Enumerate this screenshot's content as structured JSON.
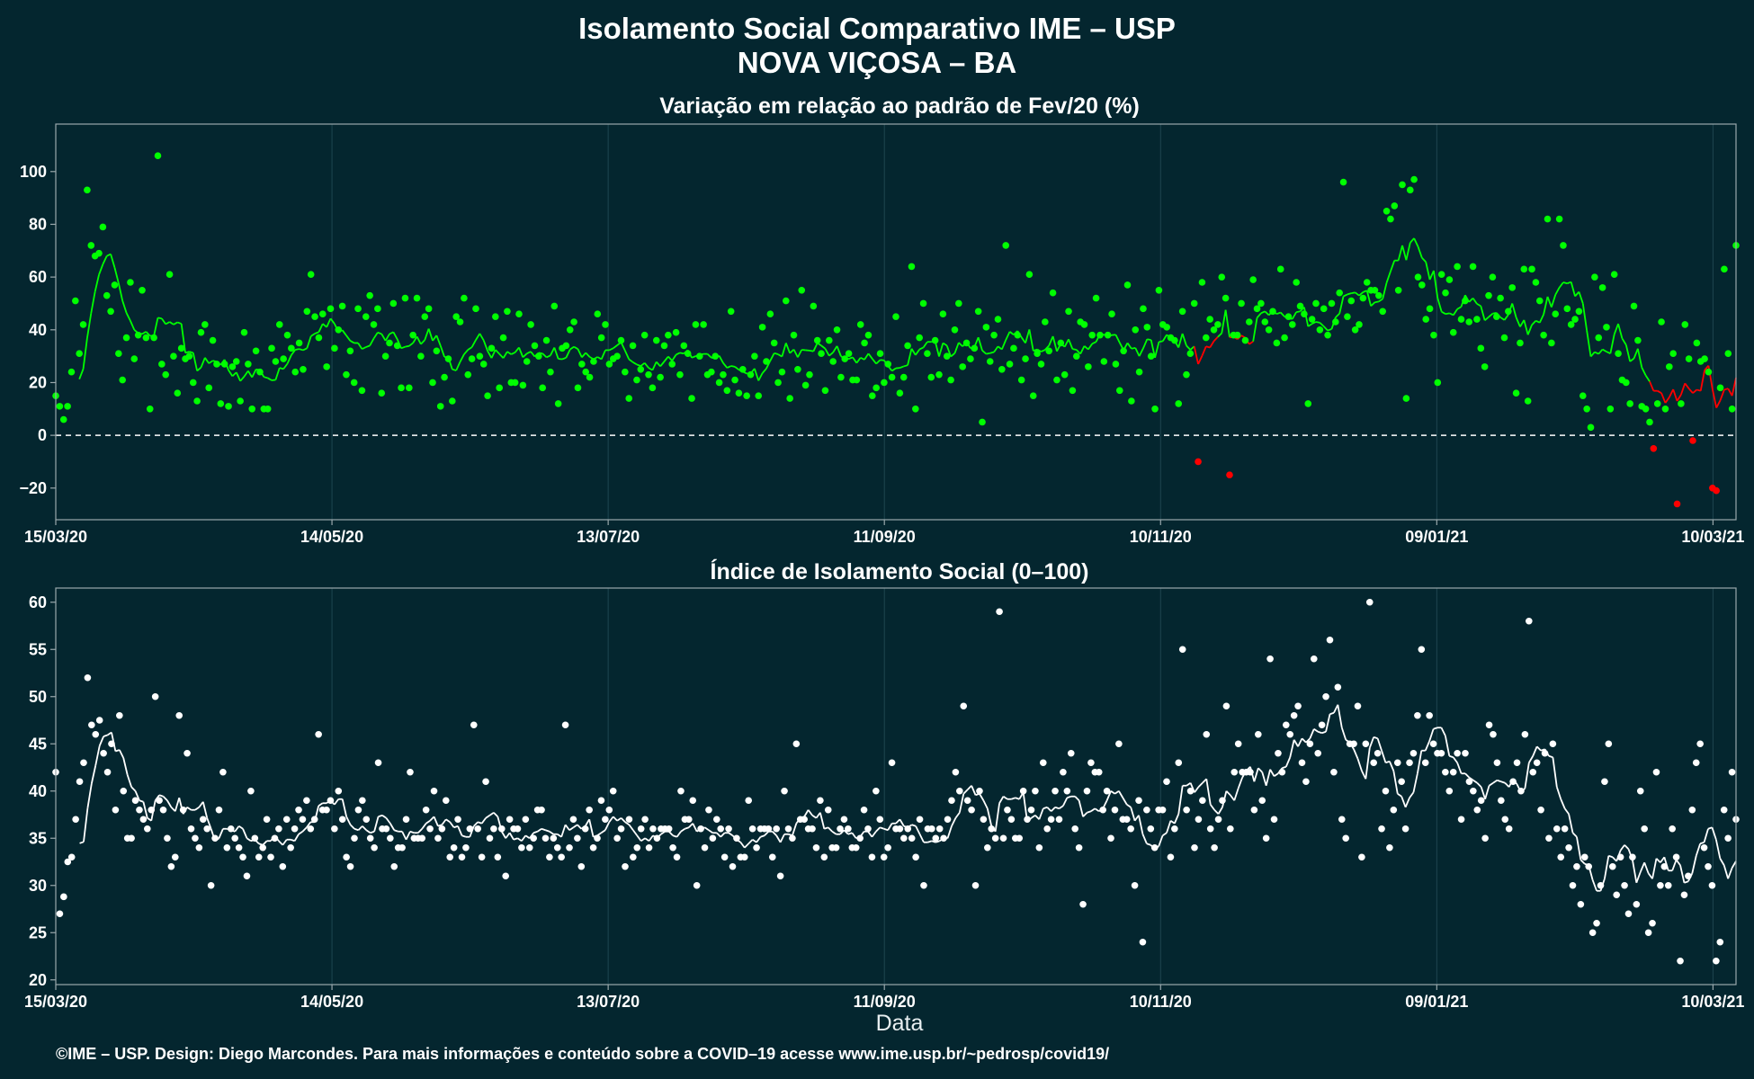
{
  "title": "Isolamento Social Comparativo IME – USP",
  "subtitle": "NOVA VIÇOSA – BA",
  "footer": "©IME – USP. Design: Diego Marcondes. Para mais informações e conteúdo sobre a COVID–19 acesse www.ime.usp.br/~pedrosp/covid19/",
  "colors": {
    "background": "#04262f",
    "panel_border": "#9aa8ac",
    "grid": "#1e4650",
    "positive": "#00ff00",
    "negative": "#ff0000",
    "index_points": "#ffffff"
  },
  "chart_data": [
    {
      "type": "scatter",
      "title": "Variação em relação ao padrão de Fev/20 (%)",
      "xlabel": "",
      "ylabel": "",
      "ylim": [
        -32,
        118
      ],
      "yticks": [
        -20,
        0,
        20,
        40,
        60,
        80,
        100
      ],
      "ytick_labels": [
        "−20",
        "0",
        "20",
        "40",
        "60",
        "80",
        "100"
      ],
      "x_tick_labels": [
        "15/03/20",
        "14/05/20",
        "13/07/20",
        "11/09/20",
        "10/11/20",
        "09/01/21",
        "10/03/21"
      ],
      "x_tick_days": [
        0,
        60,
        120,
        180,
        240,
        300,
        360
      ],
      "x_range_days": [
        0,
        365
      ],
      "reference_line": 0,
      "grid": true,
      "note": "points green when ≥ 0, red when < 0; line = 7-day moving average",
      "daily_values": [
        15,
        11,
        6,
        11,
        24,
        51,
        31,
        42,
        93,
        72,
        68,
        69,
        79,
        53,
        47,
        57,
        31,
        21,
        37,
        58,
        29,
        38,
        55,
        37,
        10,
        37,
        106,
        27,
        23,
        61,
        30,
        16,
        33,
        29,
        30,
        20,
        13,
        39,
        42,
        18,
        36,
        27,
        12,
        27,
        11,
        26,
        28,
        13,
        39,
        27,
        10,
        32,
        24,
        10,
        10,
        33,
        28,
        42,
        29,
        38,
        33,
        24,
        35,
        25,
        47,
        61,
        45,
        37,
        46,
        26,
        48,
        33,
        40,
        49,
        23,
        32,
        20,
        48,
        17,
        45,
        53,
        42,
        48,
        16,
        30,
        35,
        50,
        34,
        18,
        52,
        18,
        38,
        52,
        30,
        45,
        48,
        20,
        32,
        11,
        22,
        29,
        13,
        45,
        43,
        52,
        23,
        29,
        48,
        30,
        27,
        15,
        33,
        45,
        18,
        37,
        47,
        20,
        20,
        46,
        19,
        28,
        42,
        34,
        30,
        18,
        36,
        24,
        49,
        12,
        33,
        34,
        40,
        43,
        18,
        27,
        24,
        22,
        28,
        46,
        37,
        42,
        27,
        29,
        30,
        36,
        24,
        14,
        34,
        21,
        25,
        38,
        23,
        18,
        36,
        22,
        34,
        38,
        27,
        39,
        23,
        34,
        31,
        14,
        42,
        30,
        42,
        23,
        24,
        30,
        20,
        23,
        17,
        47,
        21,
        16,
        25,
        15,
        23,
        30,
        15,
        41,
        28,
        46,
        35,
        20,
        24,
        51,
        14,
        38,
        25,
        55,
        19,
        23,
        49,
        36,
        31,
        17,
        36,
        28,
        40,
        22,
        29,
        31,
        21,
        21,
        42,
        35,
        38,
        15,
        18,
        31,
        20,
        27,
        22,
        45,
        16,
        22,
        34,
        64,
        10,
        37,
        50,
        31,
        22,
        36,
        23,
        46,
        30,
        21,
        40,
        50,
        26,
        35,
        29,
        33,
        47,
        5,
        41,
        28,
        38,
        44,
        25,
        72,
        27,
        33,
        38,
        21,
        29,
        61,
        15,
        31,
        27,
        43,
        32,
        54,
        21,
        35,
        23,
        47,
        17,
        30,
        43,
        42,
        26,
        38,
        52,
        38,
        28,
        38,
        46,
        27,
        17,
        32,
        57,
        13,
        40,
        24,
        48,
        41,
        30,
        10,
        55,
        42,
        41,
        37,
        36,
        12,
        47,
        23,
        31,
        50,
        -10,
        58,
        37,
        44,
        40,
        42,
        60,
        52,
        -15,
        38,
        38,
        50,
        36,
        43,
        59,
        48,
        50,
        43,
        40,
        47,
        35,
        63,
        37,
        45,
        42,
        58,
        49,
        46,
        12,
        44,
        50,
        40,
        48,
        38,
        50,
        43,
        54,
        96,
        45,
        51,
        40,
        42,
        52,
        58,
        55,
        55,
        53,
        47,
        85,
        82,
        87,
        55,
        95,
        14,
        93,
        97,
        60,
        57,
        44,
        48,
        38,
        20,
        61,
        54,
        59,
        39,
        64,
        44,
        51,
        43,
        64,
        44,
        33,
        26,
        53,
        60,
        45,
        52,
        37,
        47,
        56,
        16,
        35,
        63,
        13,
        63,
        58,
        51,
        38,
        82,
        35,
        46,
        82,
        72,
        48,
        42,
        44,
        47,
        15,
        10,
        3,
        60,
        37,
        56,
        41,
        10,
        61,
        31,
        21,
        20,
        12,
        49,
        36,
        11,
        10,
        5,
        -5,
        12,
        43,
        10,
        26,
        31,
        -26,
        12,
        42,
        29,
        -2,
        35,
        28,
        29,
        24,
        -20,
        -21,
        18,
        63,
        31,
        10,
        72
      ]
    },
    {
      "type": "scatter",
      "title": "Índice de Isolamento Social (0–100)",
      "xlabel": "Data",
      "ylabel": "",
      "ylim": [
        19.5,
        61.5
      ],
      "yticks": [
        20,
        25,
        30,
        35,
        40,
        45,
        50,
        55,
        60
      ],
      "x_tick_labels": [
        "15/03/20",
        "14/05/20",
        "13/07/20",
        "11/09/20",
        "10/11/20",
        "09/01/21",
        "10/03/21"
      ],
      "x_tick_days": [
        0,
        60,
        120,
        180,
        240,
        300,
        360
      ],
      "x_range_days": [
        0,
        365
      ],
      "grid": true,
      "note": "line = 7-day moving average",
      "daily_values": [
        42,
        27,
        28.8,
        32.5,
        33,
        37,
        41,
        43,
        52,
        47,
        46,
        47.5,
        44,
        42,
        45,
        38,
        48,
        40,
        35,
        35,
        39,
        38,
        37,
        36,
        38,
        50,
        39,
        38,
        35,
        32,
        33,
        48,
        38,
        44,
        36,
        35,
        34,
        37,
        36,
        30,
        35,
        38,
        42,
        34,
        36,
        35,
        34,
        33,
        31,
        40,
        35,
        33,
        34,
        37,
        33,
        35,
        36,
        32,
        37,
        34,
        36,
        38,
        37,
        39,
        36,
        37,
        46,
        38,
        38,
        39,
        36,
        40,
        37,
        33,
        32,
        35,
        38,
        39,
        37,
        35,
        34,
        43,
        36,
        36,
        35,
        32,
        34,
        34,
        37,
        42,
        35,
        35,
        35,
        38,
        36,
        40,
        35,
        36,
        39,
        33,
        34,
        37,
        33,
        34,
        36,
        47,
        36,
        33,
        41,
        35,
        36,
        33,
        36,
        31,
        37,
        36,
        36,
        34,
        37,
        34,
        35,
        38,
        38,
        35,
        33,
        35,
        34,
        33,
        47,
        34,
        37,
        35,
        32,
        36,
        38,
        34,
        35,
        39,
        37,
        38,
        40,
        35,
        36,
        32,
        37,
        33,
        34,
        36,
        37,
        34,
        36,
        35,
        36,
        36,
        36,
        34,
        33,
        40,
        37,
        37,
        39,
        30,
        36,
        34,
        38,
        35,
        37,
        36,
        33,
        36,
        32,
        35,
        33,
        33,
        39,
        36,
        34,
        36,
        36,
        36,
        33,
        36,
        31,
        40,
        36,
        35,
        45,
        37,
        37,
        36,
        36,
        34,
        39,
        33,
        38,
        34,
        34,
        36,
        37,
        36,
        34,
        34,
        35,
        38,
        36,
        33,
        40,
        37,
        33,
        34,
        43,
        36,
        36,
        35,
        36,
        35,
        33,
        37,
        30,
        36,
        36,
        35,
        36,
        35,
        37,
        39,
        42,
        40,
        49,
        39,
        38,
        30,
        40,
        37,
        34,
        36,
        35,
        59,
        35,
        38,
        37,
        35,
        35,
        40,
        37,
        38,
        40,
        34,
        43,
        36,
        37,
        40,
        37,
        42,
        40,
        44,
        36,
        34,
        28,
        40,
        43,
        42,
        42,
        38,
        40,
        35,
        38,
        45,
        37,
        37,
        36,
        30,
        39,
        24,
        38,
        36,
        34,
        38,
        38,
        41,
        33,
        36,
        43,
        55,
        38,
        40,
        34,
        37,
        39,
        46,
        36,
        34,
        37,
        39,
        49,
        36,
        42,
        45,
        42,
        42,
        42,
        38,
        46,
        39,
        35,
        54,
        37,
        44,
        42,
        47,
        46,
        48,
        49,
        43,
        41,
        45,
        54,
        44,
        47,
        50,
        56,
        42,
        51,
        37,
        35,
        45,
        45,
        49,
        33,
        45,
        60,
        43,
        44,
        36,
        40,
        34,
        38,
        43,
        41,
        36,
        43,
        44,
        48,
        55,
        43,
        48,
        45,
        44,
        44,
        42,
        40,
        42,
        44,
        37,
        44,
        41,
        40,
        38,
        39,
        35,
        47,
        46,
        43,
        39,
        37,
        36,
        41,
        43,
        40,
        46,
        58,
        42,
        43,
        38,
        44,
        35,
        45,
        36,
        33,
        36,
        34,
        30,
        32,
        28,
        33,
        32,
        25,
        26,
        30,
        41,
        45,
        32,
        29,
        33,
        30,
        27,
        33,
        28,
        40,
        36,
        25,
        26,
        42,
        30,
        32,
        30,
        36,
        33,
        22,
        29,
        31,
        38,
        43,
        45,
        34,
        32,
        30,
        22,
        24,
        38,
        35,
        42,
        37
      ]
    }
  ]
}
